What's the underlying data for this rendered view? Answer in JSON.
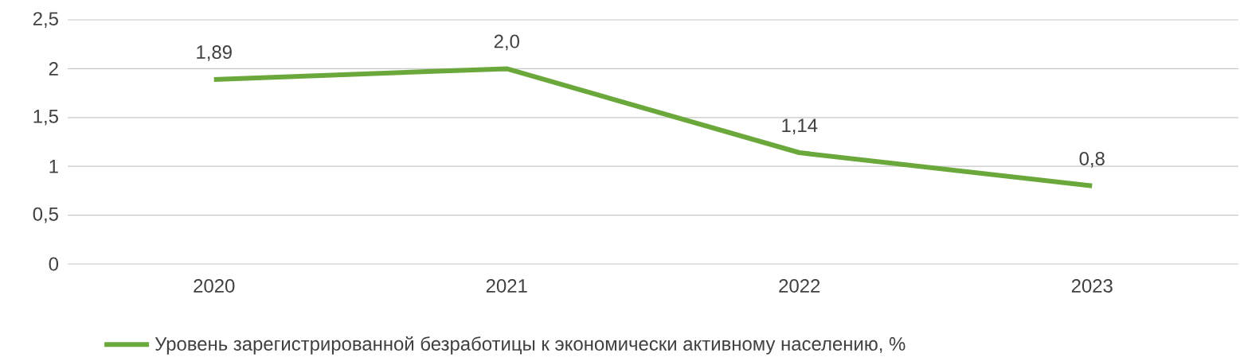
{
  "chart_data": {
    "type": "line",
    "categories": [
      "2020",
      "2021",
      "2022",
      "2023"
    ],
    "series": [
      {
        "name": "Уровень зарегистрированной безработицы к экономически активному населению, %",
        "color": "#6aa83c",
        "values": [
          1.89,
          2.0,
          1.14,
          0.8
        ],
        "value_labels": [
          "1,89",
          "2,0",
          "1,14",
          "0,8"
        ]
      }
    ],
    "ylim": [
      0,
      2.5
    ],
    "yticks": [
      0,
      {
        "value": 0.5,
        "label": "0,5"
      },
      1,
      {
        "value": 1.5,
        "label": "1,5"
      },
      2,
      {
        "value": 2.5,
        "label": "2,5"
      }
    ],
    "grid": "y",
    "legend": "bottom",
    "marker": "none"
  }
}
